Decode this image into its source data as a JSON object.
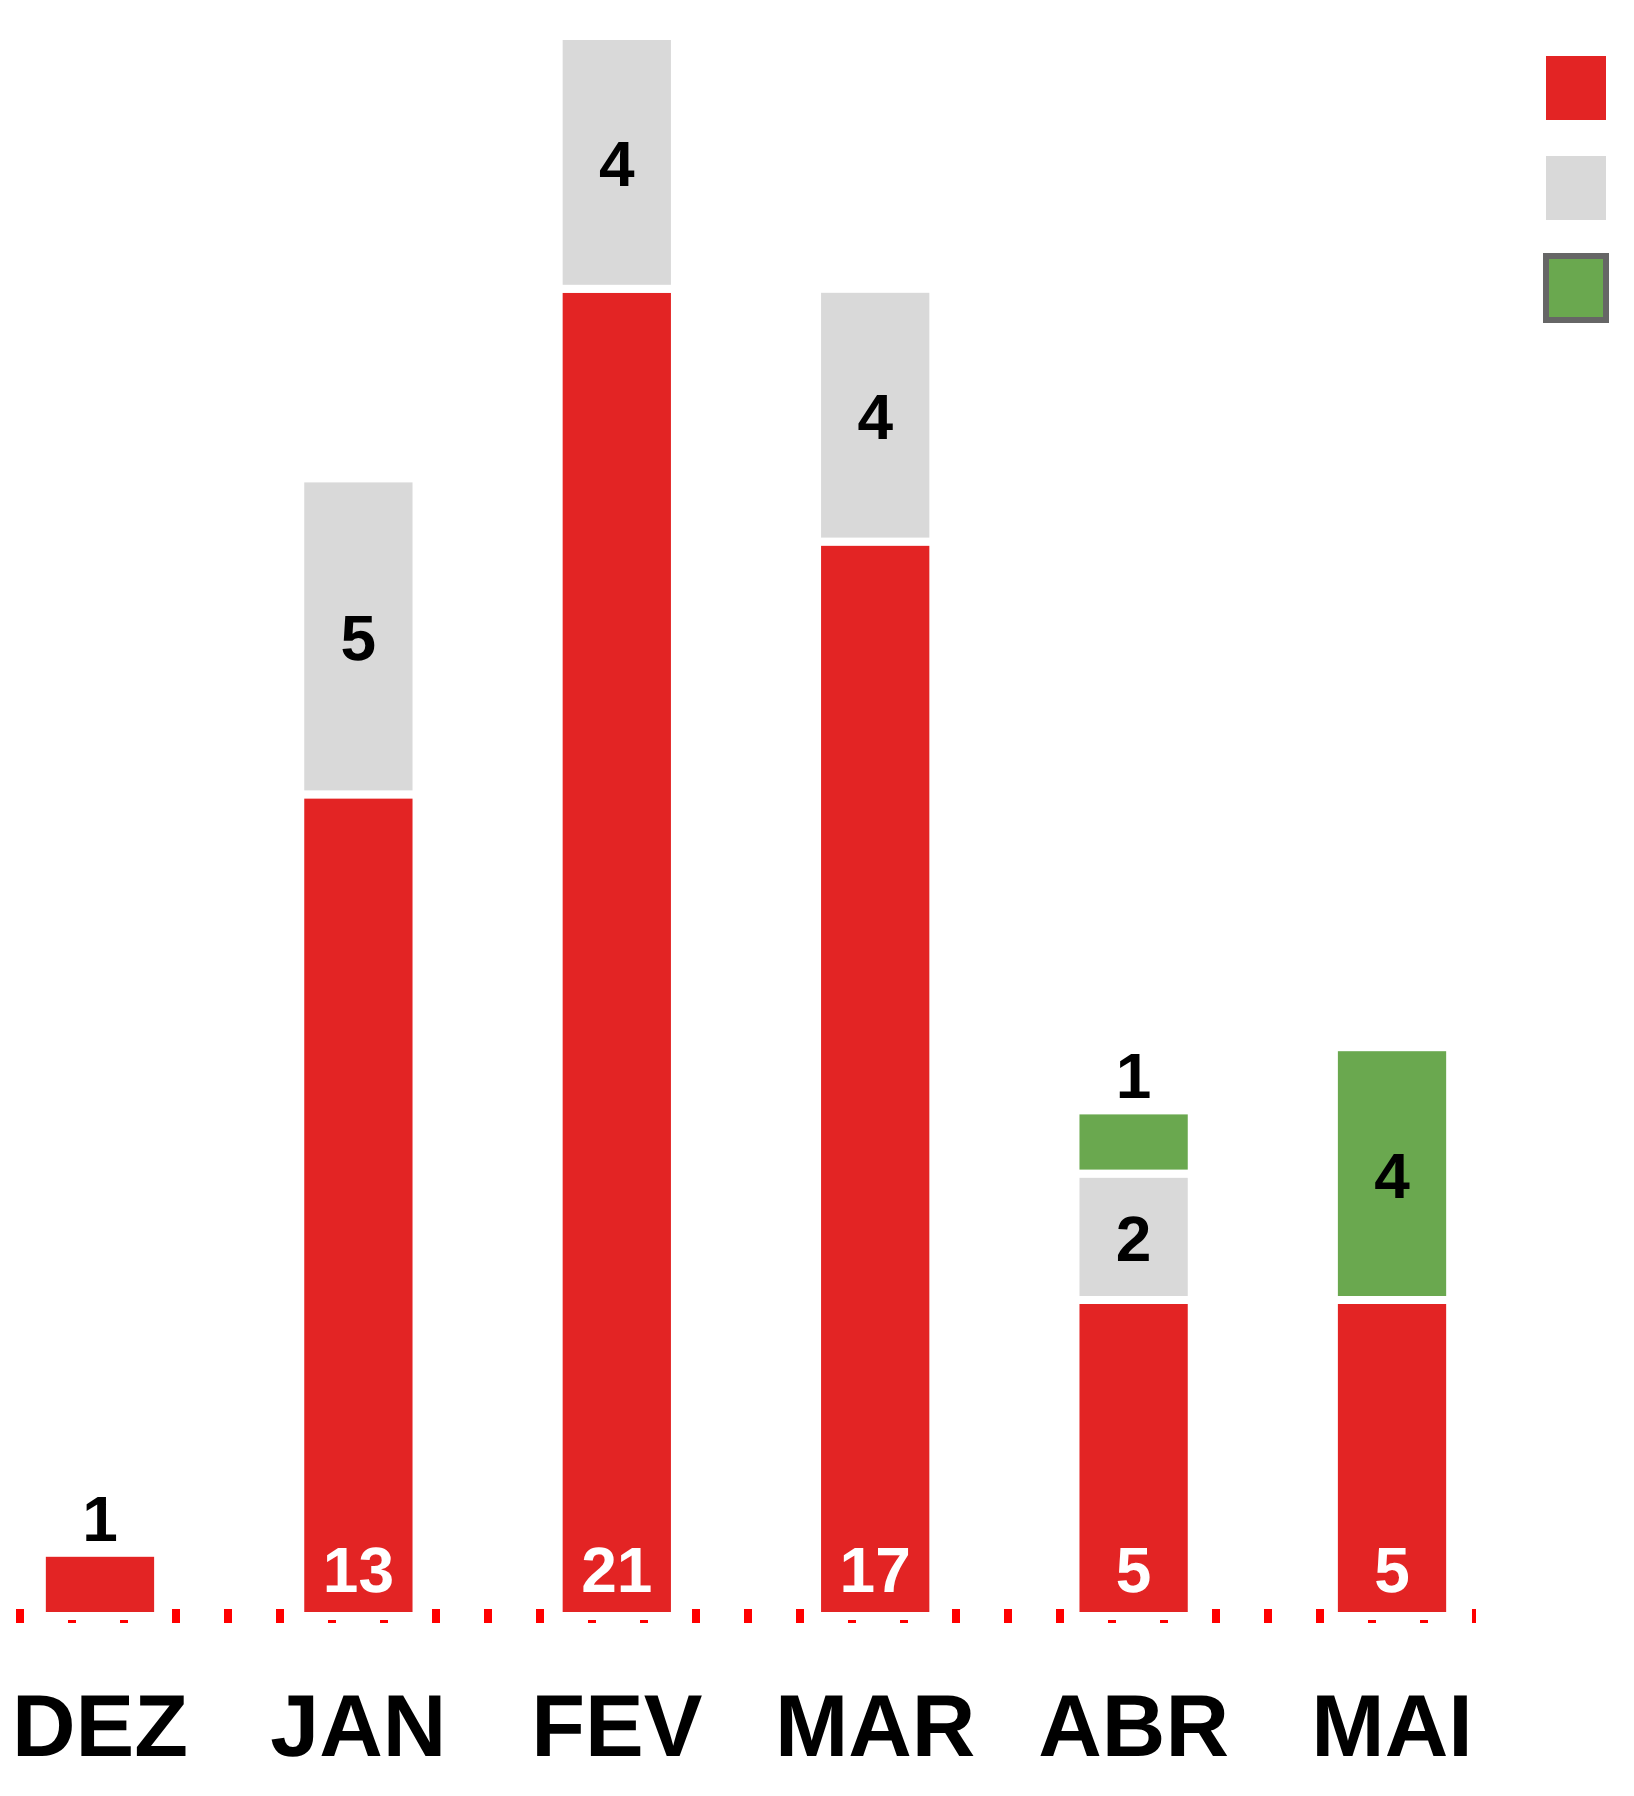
{
  "chart_data": {
    "type": "bar",
    "stacked": true,
    "data_labels": true,
    "categories": [
      "DEZ",
      "JAN",
      "FEV",
      "MAR",
      "ABR",
      "MAI"
    ],
    "series": [
      {
        "color": "#e32424",
        "values": [
          1,
          13,
          21,
          17,
          5,
          5
        ]
      },
      {
        "color": "#d9d9d9",
        "values": [
          null,
          5,
          4,
          4,
          2,
          null
        ]
      },
      {
        "color": "#6aa84f",
        "values": [
          null,
          null,
          null,
          null,
          1,
          4
        ]
      }
    ],
    "ref_lines": [
      {
        "axis": "y",
        "value": 0,
        "color": "#ff0000",
        "line_style": "dotted"
      }
    ]
  }
}
